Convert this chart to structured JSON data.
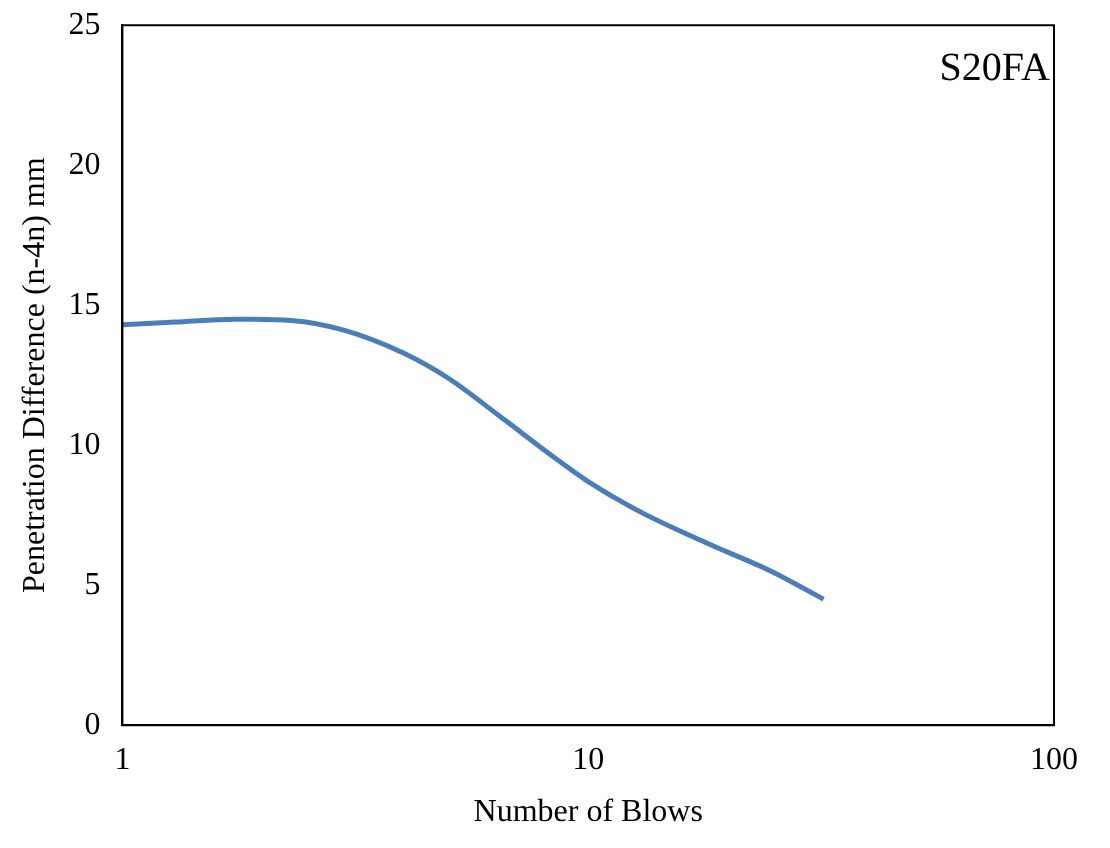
{
  "chart_data": {
    "type": "line",
    "xlabel": "Number of Blows",
    "ylabel": "Penetration Difference (n-4n) mm",
    "annotations": [
      "S20FA"
    ],
    "x": [
      1,
      1.3,
      1.75,
      2.3,
      3,
      4,
      5,
      6.5,
      8.4,
      10,
      13,
      18,
      24.7,
      32
    ],
    "series": [
      {
        "color": "#4a7ebb",
        "values": [
          14.3,
          14.4,
          14.5,
          14.45,
          14.1,
          13.3,
          12.4,
          11.0,
          9.6,
          8.7,
          7.6,
          6.5,
          5.5,
          4.5
        ]
      }
    ],
    "log": "x",
    "xlim": [
      1,
      100
    ],
    "xticks": [
      1,
      10,
      100
    ],
    "ylim": [
      0,
      25
    ],
    "yticks": [
      0,
      5,
      10,
      15,
      20,
      25
    ],
    "grid": false,
    "legend": false,
    "marker": "none",
    "line_style": "solid"
  }
}
